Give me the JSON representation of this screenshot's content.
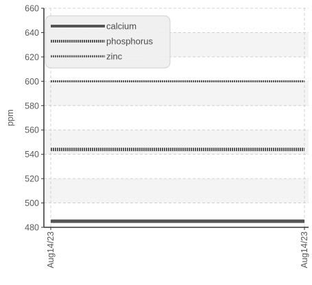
{
  "chart_data": {
    "type": "line",
    "x": [
      "Aug14/23",
      "Aug14/23"
    ],
    "ylabel": "ppm",
    "xlabel": "",
    "ylim": [
      480,
      660
    ],
    "yticks": [
      480,
      500,
      520,
      540,
      560,
      580,
      600,
      620,
      640,
      660
    ],
    "grid": true,
    "legend_position": "top-left",
    "series": [
      {
        "name": "calcium",
        "values": [
          485,
          485
        ],
        "style": "solid",
        "color": "#555555"
      },
      {
        "name": "phosphorus",
        "values": [
          544,
          544
        ],
        "style": "dotted-thick",
        "color": "#555555"
      },
      {
        "name": "zinc",
        "values": [
          600,
          600
        ],
        "style": "dotted",
        "color": "#555555"
      }
    ]
  }
}
